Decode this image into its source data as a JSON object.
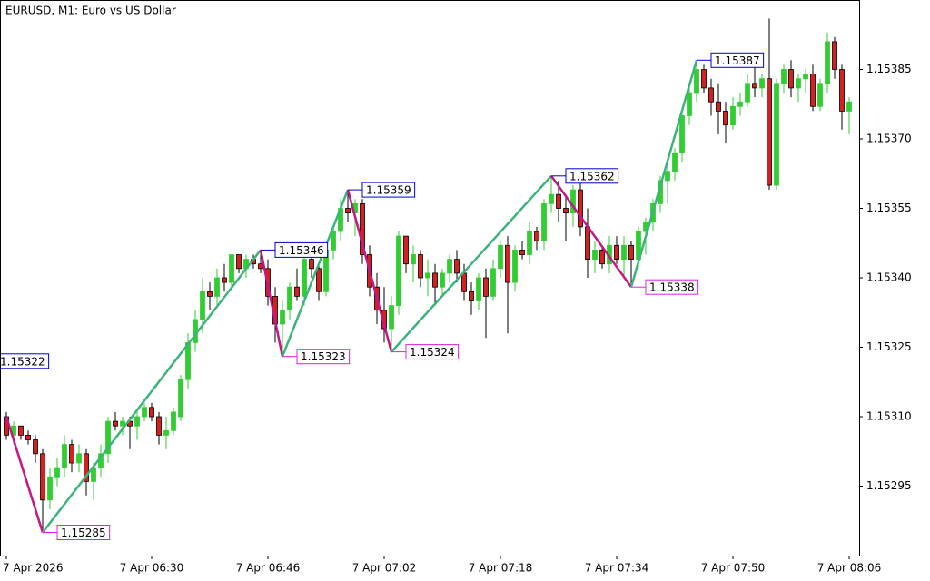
{
  "chart_data": {
    "type": "candlestick",
    "title": "EURUSD, M1:  Euro vs US Dollar",
    "categories": [
      "7 Apr 2026",
      null,
      null,
      null,
      null,
      null,
      null,
      null,
      null,
      null,
      null,
      null,
      null,
      null,
      null,
      null,
      null,
      null,
      null,
      null,
      "7 Apr 06:30",
      null,
      null,
      null,
      null,
      null,
      null,
      null,
      null,
      null,
      null,
      null,
      null,
      null,
      null,
      null,
      "7 Apr 06:46",
      null,
      null,
      null,
      null,
      null,
      null,
      null,
      null,
      null,
      null,
      null,
      null,
      null,
      null,
      null,
      "7 Apr 07:02",
      null,
      null,
      null,
      null,
      null,
      null,
      null,
      null,
      null,
      null,
      null,
      null,
      null,
      null,
      null,
      "7 Apr 07:18",
      null,
      null,
      null,
      null,
      null,
      null,
      null,
      null,
      null,
      null,
      null,
      null,
      null,
      null,
      null,
      "7 Apr 07:34",
      null,
      null,
      null,
      null,
      null,
      null,
      null,
      null,
      null,
      null,
      null,
      null,
      null,
      null,
      null,
      "7 Apr 07:50",
      null,
      null,
      null,
      null,
      null,
      null,
      null,
      null,
      null,
      null,
      null,
      null,
      null,
      null,
      null,
      "7 Apr 08:06"
    ],
    "open": [
      1.1531,
      1.15306,
      1.15308,
      1.15306,
      1.15305,
      1.15302,
      1.15292,
      1.15297,
      1.15299,
      1.15304,
      1.153,
      1.15302,
      1.15296,
      1.15299,
      1.15302,
      1.15309,
      1.15308,
      1.15309,
      1.15308,
      1.1531,
      1.15312,
      1.1531,
      1.15306,
      1.15307,
      1.1531,
      1.15318,
      1.15326,
      1.15331,
      1.15337,
      1.15336,
      1.1534,
      1.15339,
      1.15345,
      1.15342,
      1.15344,
      1.15343,
      1.15342,
      1.15336,
      1.1533,
      1.15333,
      1.15338,
      1.15336,
      1.15344,
      1.15342,
      1.15337,
      1.15346,
      1.1535,
      1.15355,
      1.15354,
      1.15356,
      1.15345,
      1.15338,
      1.15333,
      1.15329,
      1.15334,
      1.15349,
      1.15343,
      1.15345,
      1.1534,
      1.15341,
      1.15338,
      1.15341,
      1.15344,
      1.15341,
      1.15337,
      1.15335,
      1.1534,
      1.15336,
      1.15342,
      1.15347,
      1.15339,
      1.15346,
      1.15345,
      1.1535,
      1.15348,
      1.15356,
      1.15358,
      1.15355,
      1.15354,
      1.15359,
      1.15351,
      1.15344,
      1.15346,
      1.15343,
      1.15347,
      1.15344,
      1.15347,
      1.15344,
      1.1535,
      1.15352,
      1.15356,
      1.15361,
      1.15363,
      1.15367,
      1.15375,
      1.1538,
      1.15385,
      1.15381,
      1.15378,
      1.15376,
      1.15373,
      1.15377,
      1.15378,
      1.15382,
      1.15381,
      1.15383,
      1.1536,
      1.15382,
      1.15385,
      1.15381,
      1.15383,
      1.15384,
      1.15377,
      1.15382,
      1.15391,
      1.15385,
      1.15376
    ],
    "high": [
      1.15311,
      1.15309,
      1.15308,
      1.15307,
      1.15306,
      1.15303,
      1.15299,
      1.15301,
      1.15306,
      1.15305,
      1.15304,
      1.15303,
      1.153,
      1.15304,
      1.1531,
      1.15311,
      1.1531,
      1.1531,
      1.15311,
      1.15313,
      1.15313,
      1.15311,
      1.1531,
      1.15312,
      1.15319,
      1.15328,
      1.15333,
      1.1534,
      1.15339,
      1.15342,
      1.15343,
      1.15345,
      1.15345,
      1.15345,
      1.15345,
      1.15346,
      1.15344,
      1.15338,
      1.15335,
      1.15339,
      1.15342,
      1.15345,
      1.15346,
      1.15343,
      1.15347,
      1.15351,
      1.15357,
      1.15359,
      1.15357,
      1.15357,
      1.15347,
      1.15341,
      1.15338,
      1.15336,
      1.1535,
      1.15349,
      1.15347,
      1.15346,
      1.15344,
      1.15343,
      1.15342,
      1.15345,
      1.15346,
      1.15343,
      1.15339,
      1.15341,
      1.15342,
      1.15344,
      1.15348,
      1.15349,
      1.15347,
      1.15348,
      1.15352,
      1.15351,
      1.15357,
      1.15362,
      1.15361,
      1.15358,
      1.1536,
      1.15361,
      1.15355,
      1.15348,
      1.15347,
      1.15349,
      1.15349,
      1.15349,
      1.15348,
      1.15351,
      1.15353,
      1.15357,
      1.15362,
      1.15364,
      1.15368,
      1.15376,
      1.15382,
      1.15387,
      1.15386,
      1.15383,
      1.15382,
      1.15378,
      1.15379,
      1.1538,
      1.15384,
      1.15386,
      1.15384,
      1.15396,
      1.15383,
      1.15386,
      1.15387,
      1.15384,
      1.15385,
      1.15386,
      1.15383,
      1.15393,
      1.15392,
      1.15386,
      1.15379
    ],
    "low": [
      1.15305,
      1.15304,
      1.15305,
      1.15304,
      1.153,
      1.15285,
      1.1529,
      1.15295,
      1.15297,
      1.15298,
      1.15298,
      1.15293,
      1.15292,
      1.15297,
      1.153,
      1.15307,
      1.15306,
      1.15303,
      1.15305,
      1.15309,
      1.15309,
      1.15304,
      1.15303,
      1.15306,
      1.15309,
      1.15316,
      1.15324,
      1.15328,
      1.15333,
      1.15334,
      1.15337,
      1.15338,
      1.15341,
      1.1534,
      1.15342,
      1.15341,
      1.15334,
      1.15326,
      1.15323,
      1.15331,
      1.15335,
      1.15334,
      1.1534,
      1.15335,
      1.15336,
      1.15344,
      1.15348,
      1.15352,
      1.15349,
      1.15343,
      1.15336,
      1.1533,
      1.15326,
      1.15324,
      1.15332,
      1.15341,
      1.15339,
      1.15338,
      1.15336,
      1.15334,
      1.15336,
      1.15339,
      1.15339,
      1.15335,
      1.15332,
      1.15333,
      1.15327,
      1.15335,
      1.1534,
      1.15328,
      1.15337,
      1.15344,
      1.15343,
      1.15346,
      1.15346,
      1.15354,
      1.15352,
      1.15348,
      1.15351,
      1.15349,
      1.1534,
      1.15341,
      1.15342,
      1.15341,
      1.15343,
      1.1534,
      1.15338,
      1.15342,
      1.15345,
      1.1535,
      1.15354,
      1.15356,
      1.15361,
      1.15365,
      1.15373,
      1.15378,
      1.1538,
      1.15375,
      1.15371,
      1.15369,
      1.15372,
      1.15375,
      1.15377,
      1.15379,
      1.15379,
      1.15359,
      1.15359,
      1.1538,
      1.15379,
      1.15378,
      1.1538,
      1.15376,
      1.15376,
      1.1538,
      1.15383,
      1.15372,
      1.15371
    ],
    "close": [
      1.15306,
      1.15308,
      1.15306,
      1.15305,
      1.15302,
      1.15292,
      1.15297,
      1.15299,
      1.15304,
      1.153,
      1.15302,
      1.15296,
      1.15299,
      1.15302,
      1.15309,
      1.15308,
      1.15309,
      1.15308,
      1.1531,
      1.15312,
      1.1531,
      1.15306,
      1.15307,
      1.15311,
      1.15318,
      1.15326,
      1.15331,
      1.15337,
      1.15336,
      1.1534,
      1.15339,
      1.15345,
      1.15342,
      1.15344,
      1.15343,
      1.15342,
      1.15336,
      1.1533,
      1.15333,
      1.15338,
      1.15336,
      1.15344,
      1.15342,
      1.15337,
      1.15346,
      1.1535,
      1.15355,
      1.15354,
      1.15356,
      1.15345,
      1.15338,
      1.15333,
      1.15329,
      1.15334,
      1.15349,
      1.15343,
      1.15345,
      1.1534,
      1.15341,
      1.15338,
      1.15341,
      1.15344,
      1.15341,
      1.15337,
      1.15335,
      1.1534,
      1.15336,
      1.15342,
      1.15347,
      1.15339,
      1.15346,
      1.15345,
      1.1535,
      1.15348,
      1.15356,
      1.15358,
      1.15355,
      1.15354,
      1.15359,
      1.15351,
      1.15344,
      1.15346,
      1.15343,
      1.15347,
      1.15344,
      1.15347,
      1.15344,
      1.1535,
      1.15352,
      1.15356,
      1.15361,
      1.15363,
      1.15367,
      1.15375,
      1.1538,
      1.15385,
      1.15381,
      1.15378,
      1.15376,
      1.15373,
      1.15377,
      1.15378,
      1.15382,
      1.15381,
      1.15383,
      1.1536,
      1.15382,
      1.15385,
      1.15381,
      1.15383,
      1.15384,
      1.15377,
      1.15382,
      1.15391,
      1.15385,
      1.15376,
      1.15378
    ],
    "up_color": "#32cd32",
    "down_color": "#d42020",
    "zigzag": {
      "pivot_index": [
        0,
        5,
        35,
        38,
        47,
        53,
        75,
        86,
        95
      ],
      "values": [
        1.1531,
        1.15285,
        1.15346,
        1.15323,
        1.15359,
        1.15324,
        1.15362,
        1.15338,
        1.15387
      ],
      "up_color": "#3cb37a",
      "down_color": "#c71585",
      "high_label_color": "#0000cd",
      "low_label_color": "#e020e0"
    },
    "prior_pivot_label": 1.15322,
    "ylim": [
      1.1528,
      1.154
    ],
    "yticks": [
      1.15295,
      {
        "value": 1.1531,
        "label": "1.15310"
      },
      1.15325,
      {
        "value": 1.1534,
        "label": "1.15340"
      },
      1.15355,
      {
        "value": 1.1537,
        "label": "1.15370"
      },
      1.15385
    ]
  }
}
